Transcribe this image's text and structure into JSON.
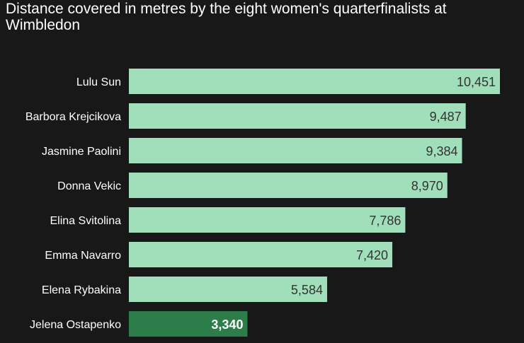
{
  "chart_data": {
    "type": "bar",
    "orientation": "horizontal",
    "title": "Distance covered in metres by the eight women's quarterfinalists at Wimbledon",
    "categories": [
      "Lulu Sun",
      "Barbora Krejcikova",
      "Jasmine Paolini",
      "Donna Vekic",
      "Elina Svitolina",
      "Emma Navarro",
      "Elena Rybakina",
      "Jelena Ostapenko"
    ],
    "values": [
      10451,
      9487,
      9384,
      8970,
      7786,
      7420,
      5584,
      3340
    ],
    "value_labels": [
      "10,451",
      "9,487",
      "9,384",
      "8,970",
      "7,786",
      "7,420",
      "5,584",
      "3,340"
    ],
    "highlight_index": 7,
    "xlim": [
      0,
      10451
    ],
    "grid": false,
    "colors": {
      "background": "#181818",
      "bar": "#a1dfba",
      "bar_highlight": "#2c7d4a",
      "label": "#ffffff",
      "value_label": "#333333",
      "value_label_highlight": "#ffffff"
    }
  }
}
